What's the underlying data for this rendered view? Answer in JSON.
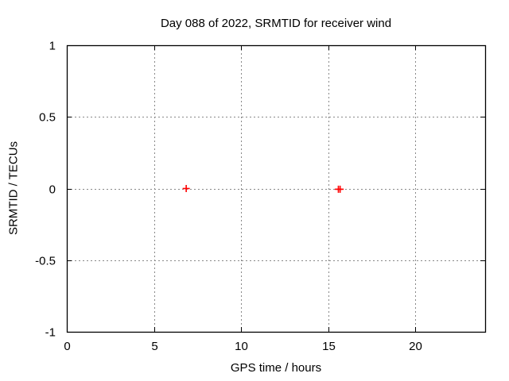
{
  "chart_data": {
    "type": "scatter",
    "title": "Day 088 of 2022, SRMTID for receiver wind",
    "xlabel": "GPS time / hours",
    "ylabel": "SRMTID / TECUs",
    "xlim": [
      0,
      24
    ],
    "ylim": [
      -1,
      1
    ],
    "xticks": [
      {
        "value": 0,
        "label": "0"
      },
      {
        "value": 5,
        "label": "5"
      },
      {
        "value": 10,
        "label": "10"
      },
      {
        "value": 15,
        "label": "15"
      },
      {
        "value": 20,
        "label": "20"
      }
    ],
    "yticks": [
      {
        "value": -1,
        "label": "-1"
      },
      {
        "value": -0.5,
        "label": "-0.5"
      },
      {
        "value": 0,
        "label": "0"
      },
      {
        "value": 0.5,
        "label": "0.5"
      },
      {
        "value": 1,
        "label": "1"
      }
    ],
    "grid": true,
    "grid_style": "dotted",
    "legend_position": "none",
    "series": [
      {
        "name": "SRMTID",
        "marker": "plus",
        "color": "#ff0000",
        "points": [
          {
            "x": 6.85,
            "y": 0.0
          },
          {
            "x": 15.58,
            "y": -0.005
          },
          {
            "x": 15.68,
            "y": -0.005
          }
        ]
      }
    ],
    "colors": {
      "background": "#ffffff",
      "border": "#000000",
      "grid": "#888888",
      "text": "#000000"
    }
  }
}
